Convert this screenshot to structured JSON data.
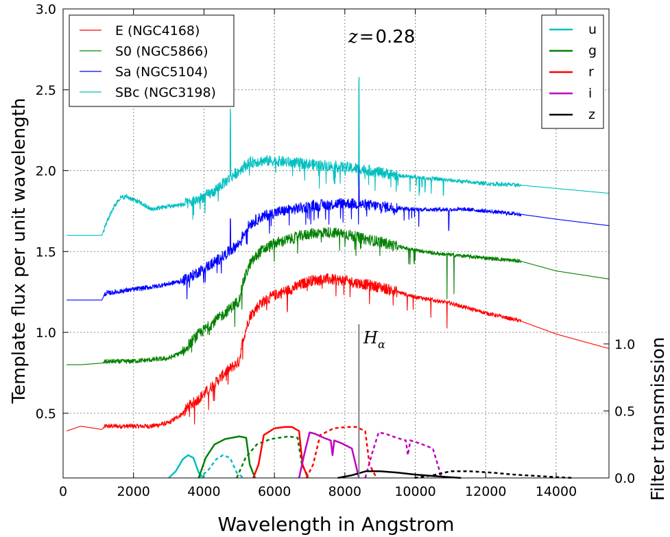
{
  "chart_data": {
    "type": "line",
    "title": "",
    "annotation": {
      "redshift_symbol": "z",
      "redshift_eq": "=",
      "redshift_value": "0.28",
      "line_symbol": "H",
      "line_subscript": "α",
      "line_wavelength": 8400
    },
    "xlabel": "Wavelength in Angstrom",
    "ylabel": "Template flux per unit wavelength",
    "ylabel_right": "Filter transmission",
    "xlim": [
      0,
      15500
    ],
    "ylim": [
      0.1,
      3.0
    ],
    "ylim_right": [
      0,
      3.5
    ],
    "x_ticks": [
      "0",
      "2000",
      "4000",
      "6000",
      "8000",
      "10000",
      "12000",
      "14000"
    ],
    "x_tick_values": [
      0,
      2000,
      4000,
      6000,
      8000,
      10000,
      12000,
      14000
    ],
    "y_ticks": [
      "0.5",
      "1.0",
      "1.5",
      "2.0",
      "2.5",
      "3.0"
    ],
    "y_tick_values": [
      0.5,
      1.0,
      1.5,
      2.0,
      2.5,
      3.0
    ],
    "y_right_ticks": [
      "0.0",
      "0.5",
      "1.0"
    ],
    "y_right_tick_values": [
      0.0,
      0.5,
      1.0
    ],
    "grid": true,
    "legend_templates": {
      "placement": "top-left"
    },
    "legend_filters": {
      "placement": "top-right"
    },
    "series": [
      {
        "name": "E (NGC4168)",
        "color": "#ff0000",
        "x": [
          100,
          500,
          1100,
          1200,
          1800,
          2500,
          3000,
          3400,
          3600,
          3800,
          4200,
          4600,
          5000,
          5100,
          5300,
          5600,
          6000,
          6500,
          7000,
          7500,
          8000,
          8500,
          9000,
          9500,
          10000,
          10500,
          11000,
          11500,
          12000,
          13000,
          14000,
          15500
        ],
        "y": [
          0.39,
          0.42,
          0.4,
          0.42,
          0.42,
          0.42,
          0.44,
          0.5,
          0.55,
          0.58,
          0.66,
          0.75,
          0.82,
          0.95,
          1.1,
          1.18,
          1.23,
          1.27,
          1.32,
          1.33,
          1.32,
          1.3,
          1.28,
          1.25,
          1.22,
          1.2,
          1.18,
          1.15,
          1.12,
          1.07,
          0.99,
          0.9
        ]
      },
      {
        "name": "S0 (NGC5866)",
        "color": "#008000",
        "x": [
          100,
          500,
          1100,
          1200,
          1800,
          2500,
          3000,
          3400,
          3600,
          3800,
          4200,
          4600,
          5000,
          5100,
          5300,
          5600,
          6000,
          6500,
          7000,
          7500,
          8000,
          8500,
          9000,
          9500,
          10000,
          10500,
          11000,
          11500,
          12000,
          13000,
          14000,
          15500
        ],
        "y": [
          0.8,
          0.8,
          0.81,
          0.82,
          0.82,
          0.83,
          0.84,
          0.88,
          0.93,
          0.98,
          1.05,
          1.12,
          1.2,
          1.3,
          1.42,
          1.5,
          1.55,
          1.58,
          1.61,
          1.62,
          1.61,
          1.58,
          1.56,
          1.53,
          1.51,
          1.49,
          1.48,
          1.47,
          1.46,
          1.44,
          1.38,
          1.33
        ]
      },
      {
        "name": "Sa (NGC5104)",
        "color": "#0000ff",
        "x": [
          100,
          500,
          1100,
          1200,
          1800,
          2500,
          3000,
          3400,
          3600,
          3800,
          4200,
          4600,
          5000,
          5100,
          5300,
          5600,
          6000,
          6500,
          7000,
          7500,
          8000,
          8500,
          9000,
          9500,
          10000,
          10500,
          11000,
          11500,
          12000,
          13000,
          14000,
          15500
        ],
        "y": [
          1.2,
          1.2,
          1.2,
          1.24,
          1.26,
          1.28,
          1.3,
          1.32,
          1.34,
          1.37,
          1.42,
          1.48,
          1.55,
          1.6,
          1.67,
          1.71,
          1.74,
          1.76,
          1.78,
          1.79,
          1.8,
          1.79,
          1.78,
          1.77,
          1.76,
          1.76,
          1.76,
          1.76,
          1.75,
          1.73,
          1.7,
          1.66
        ]
      },
      {
        "name": "SBc (NGC3198)",
        "color": "#00bfbf",
        "x": [
          100,
          500,
          1100,
          1200,
          1400,
          1600,
          1800,
          2200,
          2500,
          3000,
          3400,
          3600,
          3800,
          4200,
          4600,
          5000,
          5100,
          5300,
          5600,
          6000,
          6500,
          7000,
          7500,
          8000,
          8500,
          9000,
          9500,
          10000,
          10500,
          11000,
          11500,
          12000,
          13000,
          14000,
          15500
        ],
        "y": [
          1.6,
          1.6,
          1.6,
          1.66,
          1.76,
          1.83,
          1.84,
          1.8,
          1.76,
          1.78,
          1.79,
          1.8,
          1.82,
          1.86,
          1.93,
          2.0,
          2.02,
          2.05,
          2.06,
          2.06,
          2.05,
          2.04,
          2.03,
          2.02,
          2.01,
          1.99,
          1.97,
          1.96,
          1.95,
          1.94,
          1.93,
          1.92,
          1.91,
          1.89,
          1.86
        ]
      }
    ],
    "filters": [
      {
        "name": "u",
        "color": "#00bfbf",
        "rest": {
          "x": [
            3000,
            3200,
            3400,
            3550,
            3700,
            3850,
            4000
          ],
          "y": [
            0.0,
            0.05,
            0.14,
            0.17,
            0.15,
            0.04,
            0.0
          ]
        },
        "shift": {
          "x": [
            3840,
            4100,
            4350,
            4540,
            4740,
            4930,
            5120
          ],
          "y": [
            0.0,
            0.05,
            0.14,
            0.17,
            0.15,
            0.04,
            0.0
          ]
        }
      },
      {
        "name": "g",
        "color": "#008000",
        "rest": {
          "x": [
            3850,
            4050,
            4300,
            4600,
            5000,
            5200,
            5300,
            5450
          ],
          "y": [
            0.0,
            0.15,
            0.25,
            0.29,
            0.31,
            0.3,
            0.1,
            0.0
          ]
        },
        "shift": {
          "x": [
            4930,
            5180,
            5500,
            5890,
            6400,
            6660,
            6780,
            6980
          ],
          "y": [
            0.0,
            0.15,
            0.25,
            0.29,
            0.31,
            0.3,
            0.1,
            0.0
          ]
        }
      },
      {
        "name": "r",
        "color": "#ff0000",
        "rest": {
          "x": [
            5400,
            5550,
            5700,
            6000,
            6300,
            6500,
            6700,
            6800,
            6950
          ],
          "y": [
            0.0,
            0.1,
            0.32,
            0.37,
            0.38,
            0.38,
            0.35,
            0.1,
            0.0
          ]
        },
        "shift": {
          "x": [
            6910,
            7100,
            7300,
            7680,
            8060,
            8320,
            8580,
            8700,
            8900
          ],
          "y": [
            0.0,
            0.1,
            0.32,
            0.37,
            0.38,
            0.38,
            0.35,
            0.1,
            0.0
          ]
        }
      },
      {
        "name": "i",
        "color": "#bf00bf",
        "rest": {
          "x": [
            6700,
            6850,
            7000,
            7150,
            7400,
            7600,
            7650,
            7700,
            7900,
            8200,
            8400
          ],
          "y": [
            0.0,
            0.18,
            0.34,
            0.33,
            0.3,
            0.28,
            0.17,
            0.28,
            0.26,
            0.22,
            0.0
          ]
        },
        "shift": {
          "x": [
            8580,
            8770,
            8960,
            9150,
            9470,
            9730,
            9790,
            9860,
            10110,
            10500,
            10750
          ],
          "y": [
            0.0,
            0.18,
            0.34,
            0.33,
            0.3,
            0.28,
            0.17,
            0.28,
            0.26,
            0.22,
            0.0
          ]
        }
      },
      {
        "name": "z",
        "color": "#000000",
        "rest": {
          "x": [
            7800,
            8200,
            8600,
            9000,
            9500,
            10000,
            10500,
            11000,
            11300
          ],
          "y": [
            0.0,
            0.02,
            0.05,
            0.05,
            0.04,
            0.025,
            0.015,
            0.005,
            0.0
          ]
        },
        "shift": {
          "x": [
            9980,
            10500,
            11010,
            11520,
            12160,
            12800,
            13440,
            14080,
            14460
          ],
          "y": [
            0.0,
            0.02,
            0.05,
            0.05,
            0.04,
            0.025,
            0.015,
            0.005,
            0.0
          ]
        }
      }
    ],
    "features": [
      {
        "series": 3,
        "x": 4750,
        "dy": 0.4,
        "kind": "emission"
      },
      {
        "series": 3,
        "x": 8400,
        "dy": 0.55,
        "kind": "emission"
      },
      {
        "series": 3,
        "x": 10800,
        "dy": -0.1,
        "kind": "absorption"
      },
      {
        "series": 2,
        "x": 4750,
        "dy": 0.2,
        "kind": "emission"
      },
      {
        "series": 2,
        "x": 8400,
        "dy": 0.25,
        "kind": "emission"
      },
      {
        "series": 2,
        "x": 10950,
        "dy": -0.13,
        "kind": "absorption"
      },
      {
        "series": 1,
        "x": 10900,
        "dy": -0.28,
        "kind": "absorption"
      },
      {
        "series": 1,
        "x": 11100,
        "dy": -0.25,
        "kind": "absorption"
      },
      {
        "series": 0,
        "x": 10900,
        "dy": -0.16,
        "kind": "absorption"
      },
      {
        "series": 0,
        "x": 8700,
        "dy": -0.09,
        "kind": "absorption"
      }
    ]
  }
}
